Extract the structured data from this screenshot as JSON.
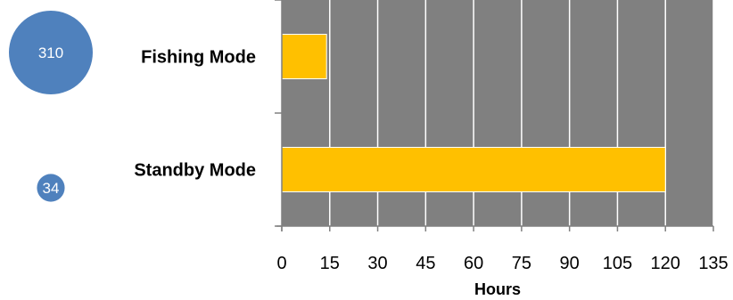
{
  "chart_data": {
    "type": "bar",
    "orientation": "horizontal",
    "categories": [
      "Fishing Mode",
      "Standby Mode"
    ],
    "values": [
      14,
      120
    ],
    "bubbles": [
      {
        "category": "Fishing Mode",
        "value": 310,
        "label": "310"
      },
      {
        "category": "Standby Mode",
        "value": 34,
        "label": "34"
      }
    ],
    "xlabel": "Hours",
    "xlim": [
      0,
      135
    ],
    "xticks": [
      0,
      15,
      30,
      45,
      60,
      75,
      90,
      105,
      120,
      135
    ],
    "grid": true,
    "colors": {
      "plot_background": "#808080",
      "bar": "#FFC000",
      "bubble": "#4F81BD",
      "gridline": "#ffffff"
    }
  }
}
